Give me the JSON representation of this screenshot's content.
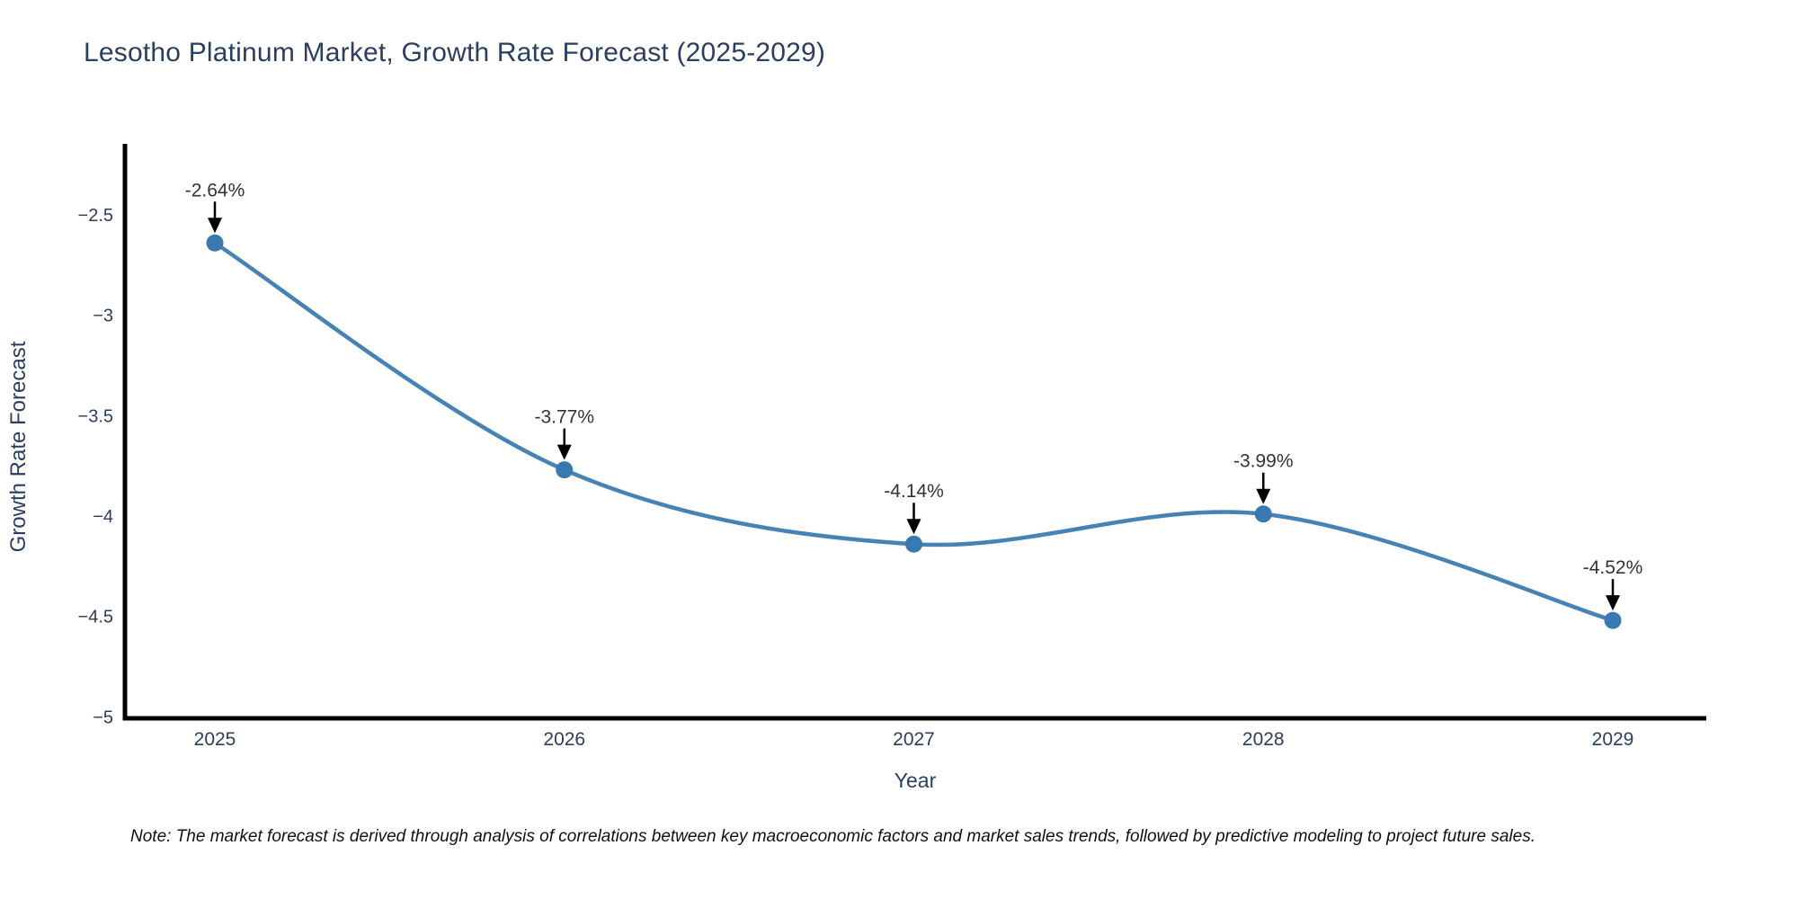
{
  "page": {
    "background": "#ffffff"
  },
  "title": {
    "text": "Lesotho Platinum Market, Growth Rate Forecast (2025-2029)",
    "color": "#2a3f5f"
  },
  "note": {
    "text": "Note: The market forecast is derived through analysis of correlations between key macroeconomic factors and market sales trends, followed by predictive modeling to project future sales."
  },
  "chart_data": {
    "type": "line",
    "line_shape": "spline",
    "title": "Lesotho Platinum Market, Growth Rate Forecast (2025-2029)",
    "xlabel": "Year",
    "ylabel": "Growth Rate Forecast",
    "x": [
      2025,
      2026,
      2027,
      2028,
      2029
    ],
    "x_tick_labels": [
      "2025",
      "2026",
      "2027",
      "2028",
      "2029"
    ],
    "values": [
      -2.64,
      -3.77,
      -4.14,
      -3.99,
      -4.52
    ],
    "point_labels": [
      "-2.64%",
      "-3.77%",
      "-4.14%",
      "-3.99%",
      "-4.52%"
    ],
    "y_tick_values": [
      -2.5,
      -3,
      -3.5,
      -4,
      -4.5,
      -5
    ],
    "y_tick_labels": [
      "−2.5",
      "−3",
      "−3.5",
      "−4",
      "−4.5",
      "−5"
    ],
    "ylim": [
      -5.0,
      -2.15
    ],
    "grid": false,
    "legend": "none",
    "line_color": "#4682b4",
    "marker_color": "#3a78b2",
    "axis_line_color": "#000000",
    "tick_label_color": "#2a3f5f",
    "axis_title_color": "#2a3f5f",
    "annotation_text_color": "#333333",
    "annotation_arrow_color": "#000000"
  }
}
